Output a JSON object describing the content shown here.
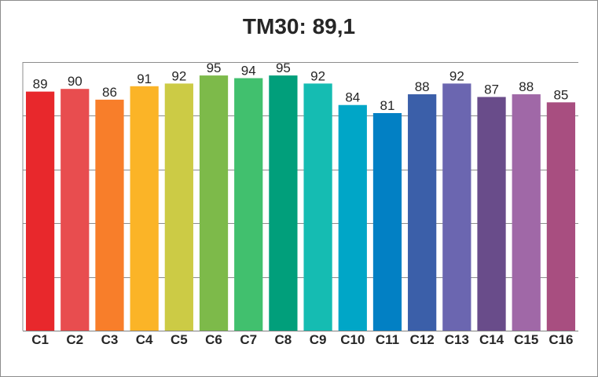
{
  "chart_data": {
    "type": "bar",
    "title": "TM30: 89,1",
    "xlabel": "",
    "ylabel": "",
    "ylim": [
      0,
      100
    ],
    "grid": true,
    "legend": "none",
    "categories": [
      "C1",
      "C2",
      "C3",
      "C4",
      "C5",
      "C6",
      "C7",
      "C8",
      "C9",
      "C10",
      "C11",
      "C12",
      "C13",
      "C14",
      "C15",
      "C16"
    ],
    "values": [
      89,
      90,
      86,
      91,
      92,
      95,
      94,
      95,
      92,
      84,
      81,
      88,
      92,
      87,
      88,
      85
    ],
    "colors": [
      "#e8282c",
      "#e84d4f",
      "#f87e2a",
      "#fbb427",
      "#cccb45",
      "#7dba4a",
      "#41c06e",
      "#019f7b",
      "#15bcb2",
      "#00a6c7",
      "#0280c4",
      "#3b5fa9",
      "#6b66b0",
      "#694c8a",
      "#a068a7",
      "#a84e80"
    ]
  }
}
